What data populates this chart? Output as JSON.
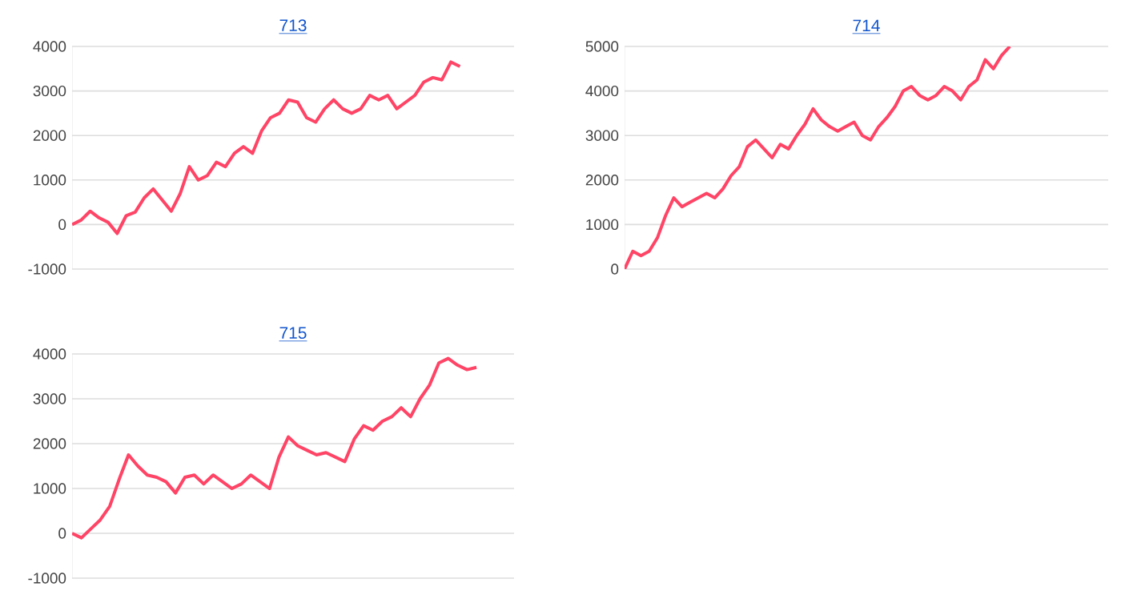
{
  "chart_data": [
    {
      "type": "line",
      "title": "713",
      "categories": [
        null,
        null,
        null,
        null,
        null,
        null,
        null,
        null,
        null,
        null,
        null,
        null,
        null,
        null,
        null,
        null,
        null,
        null,
        null,
        null,
        null,
        null,
        null,
        null,
        null,
        null,
        null,
        null,
        null,
        null,
        null,
        null,
        null,
        null,
        null,
        null,
        null,
        null,
        null,
        null,
        null,
        null,
        null,
        null,
        null,
        null,
        null,
        null,
        null,
        null
      ],
      "series": [
        {
          "color": "#ff4466",
          "values": [
            0,
            100,
            300,
            150,
            50,
            -200,
            200,
            280,
            600,
            800,
            550,
            300,
            700,
            1300,
            1000,
            1100,
            1400,
            1300,
            1600,
            1750,
            1600,
            2100,
            2400,
            2500,
            2800,
            2750,
            2400,
            2300,
            2600,
            2800,
            2600,
            2500,
            2600,
            2900,
            2800,
            2900,
            2600,
            2750,
            2900,
            3200,
            3300,
            3250,
            3650,
            3550,
            null,
            null,
            null,
            null,
            null,
            null
          ]
        }
      ],
      "ylim": [
        -1000,
        4000
      ],
      "yticks": [
        -1000,
        0,
        1000,
        2000,
        3000,
        4000
      ],
      "grid": "y",
      "marker": "none",
      "line_style": "solid"
    },
    {
      "type": "line",
      "title": "714",
      "categories": [
        null,
        null,
        null,
        null,
        null,
        null,
        null,
        null,
        null,
        null,
        null,
        null,
        null,
        null,
        null,
        null,
        null,
        null,
        null,
        null,
        null,
        null,
        null,
        null,
        null,
        null,
        null,
        null,
        null,
        null,
        null,
        null,
        null,
        null,
        null,
        null,
        null,
        null,
        null,
        null,
        null,
        null,
        null,
        null,
        null,
        null,
        null,
        null,
        null,
        null,
        null,
        null,
        null,
        null,
        null,
        null,
        null,
        null,
        null,
        null
      ],
      "series": [
        {
          "color": "#ff4466",
          "values": [
            0,
            400,
            300,
            400,
            700,
            1200,
            1600,
            1400,
            1500,
            1600,
            1700,
            1600,
            1800,
            2100,
            2300,
            2750,
            2900,
            2700,
            2500,
            2800,
            2700,
            3000,
            3250,
            3600,
            3350,
            3200,
            3100,
            3200,
            3300,
            3000,
            2900,
            3200,
            3400,
            3650,
            4000,
            4100,
            3900,
            3800,
            3900,
            4100,
            4000,
            3800,
            4100,
            4250,
            4700,
            4500,
            4800,
            5000,
            null,
            null,
            null,
            null,
            null,
            null,
            null,
            null,
            null,
            null,
            null,
            null
          ]
        }
      ],
      "ylim": [
        0,
        5000
      ],
      "yticks": [
        0,
        1000,
        2000,
        3000,
        4000,
        5000
      ],
      "grid": "y",
      "marker": "none",
      "line_style": "solid"
    },
    {
      "type": "line",
      "title": "715",
      "categories": [
        null,
        null,
        null,
        null,
        null,
        null,
        null,
        null,
        null,
        null,
        null,
        null,
        null,
        null,
        null,
        null,
        null,
        null,
        null,
        null,
        null,
        null,
        null,
        null,
        null,
        null,
        null,
        null,
        null,
        null,
        null,
        null,
        null,
        null,
        null,
        null,
        null,
        null,
        null,
        null,
        null,
        null,
        null,
        null,
        null,
        null,
        null,
        null
      ],
      "series": [
        {
          "color": "#ff4466",
          "values": [
            0,
            -100,
            100,
            300,
            600,
            1200,
            1750,
            1500,
            1300,
            1250,
            1150,
            900,
            1250,
            1300,
            1100,
            1300,
            1150,
            1000,
            1100,
            1300,
            1150,
            1000,
            1700,
            2150,
            1950,
            1850,
            1750,
            1800,
            1700,
            1600,
            2100,
            2400,
            2300,
            2500,
            2600,
            2800,
            2600,
            3000,
            3300,
            3800,
            3900,
            3750,
            3650,
            3700,
            null,
            null,
            null,
            null
          ]
        }
      ],
      "ylim": [
        -1000,
        4000
      ],
      "yticks": [
        -1000,
        0,
        1000,
        2000,
        3000,
        4000
      ],
      "grid": "y",
      "marker": "none",
      "line_style": "solid"
    }
  ]
}
